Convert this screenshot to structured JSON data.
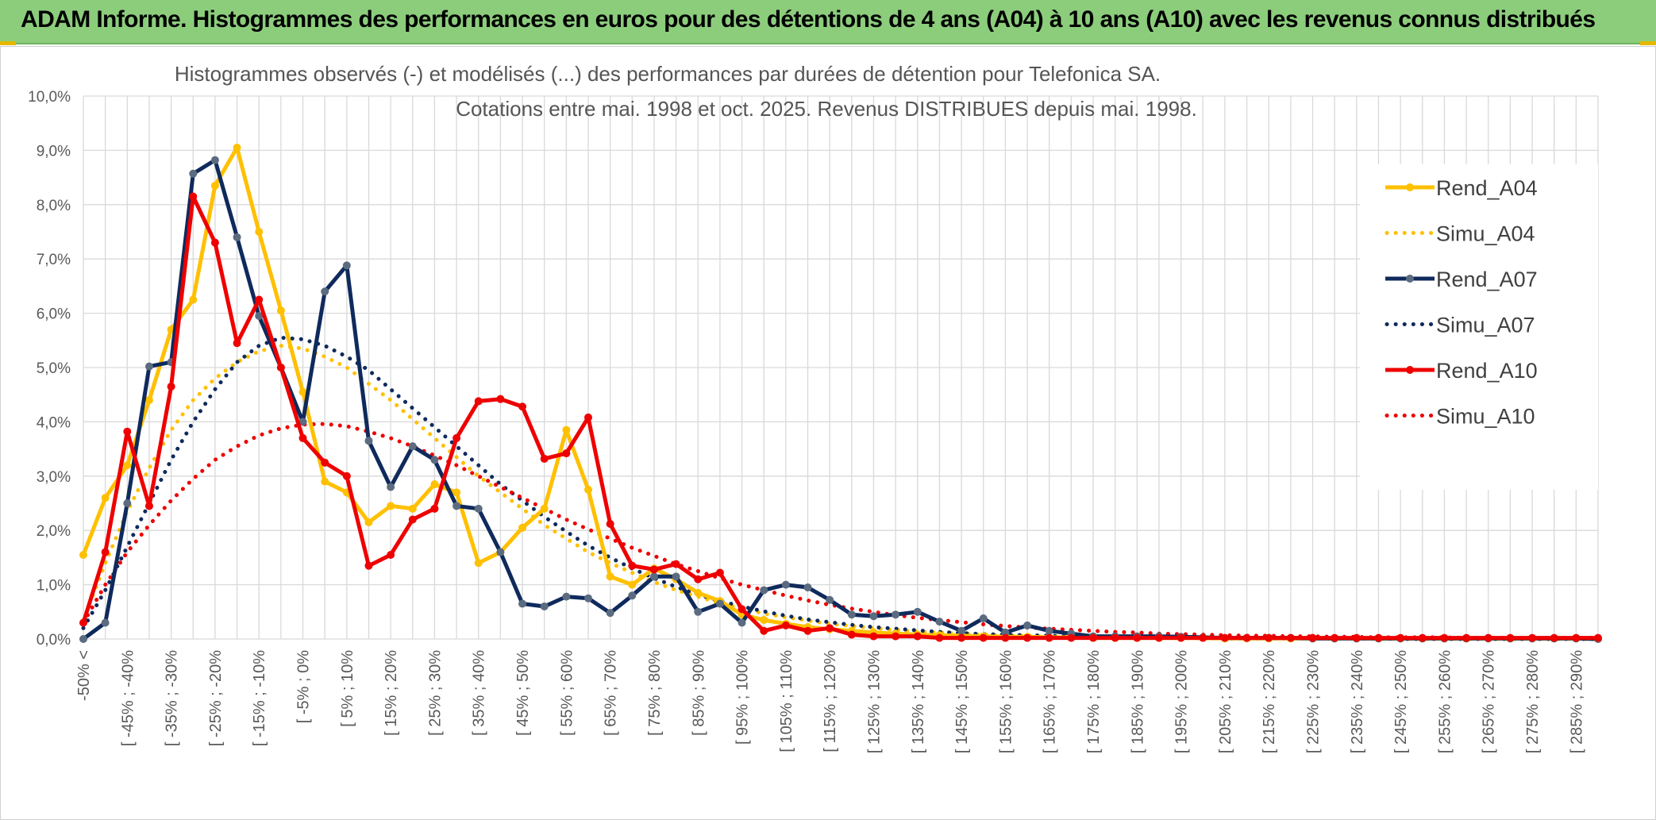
{
  "header": {
    "title": "ADAM Informe. Histogrammes des performances en euros pour des détentions de 4 ans (A04) à 10 ans (A10) avec les revenus connus distribués"
  },
  "colors": {
    "banner": "#8ccd7c",
    "a04": "#ffc000",
    "a07": "#0f2a5c",
    "a07_marker": "#5b6b80",
    "a10": "#ee0000",
    "grid": "#d9d9d9"
  },
  "chart_data": {
    "type": "line",
    "title": [
      "Histogrammes observés (-) et modélisés (...) des performances par durées de détention pour Telefonica SA.",
      "Cotations entre mai. 1998 et oct. 2025. Revenus DISTRIBUES depuis mai. 1998."
    ],
    "ylim": [
      0,
      10
    ],
    "yticks": [
      "0,0%",
      "1,0%",
      "2,0%",
      "3,0%",
      "4,0%",
      "5,0%",
      "6,0%",
      "7,0%",
      "8,0%",
      "9,0%",
      "10,0%"
    ],
    "xlabel": "",
    "ylabel": "",
    "x_tick_labels": [
      "-50% <",
      "[ -45% ; -40%",
      "[ -35% ; -30%",
      "[ -25% ; -20%",
      "[ -15% ; -10%",
      "[ -5% ; 0%",
      "[ 5% ; 10%",
      "[ 15% ; 20%",
      "[ 25% ; 30%",
      "[ 35% ; 40%",
      "[ 45% ; 50%",
      "[ 55% ; 60%",
      "[ 65% ; 70%",
      "[ 75% ; 80%",
      "[ 85% ; 90%",
      "[ 95% ; 100%",
      "[ 105% ; 110%",
      "[ 115% ; 120%",
      "[ 125% ; 130%",
      "[ 135% ; 140%",
      "[ 145% ; 150%",
      "[ 155% ; 160%",
      "[ 165% ; 170%",
      "[ 175% ; 180%",
      "[ 185% ; 190%",
      "[ 195% ; 200%",
      "[ 205% ; 210%",
      "[ 215% ; 220%",
      "[ 225% ; 230%",
      "[ 235% ; 240%",
      "[ 245% ; 250%",
      "[ 255% ; 260%",
      "[ 265% ; 270%",
      "[ 275% ; 280%",
      "[ 285% ; 290%"
    ],
    "legend_position": "right",
    "series": [
      {
        "name": "Rend_A04",
        "style": "solid",
        "color": "#ffc000",
        "values": [
          1.55,
          2.6,
          3.2,
          4.4,
          5.7,
          6.25,
          8.35,
          9.05,
          7.5,
          6.05,
          4.55,
          2.9,
          2.7,
          2.15,
          2.45,
          2.4,
          2.85,
          2.7,
          1.4,
          1.6,
          2.05,
          2.4,
          3.85,
          2.75,
          1.15,
          1.0,
          1.3,
          1.1,
          0.85,
          0.7,
          0.45,
          0.35,
          0.28,
          0.22,
          0.18,
          0.15,
          0.12,
          0.1,
          0.08,
          0.07,
          0.06,
          0.05,
          0.04,
          0.04,
          0.03,
          0.03,
          0.02,
          0.02,
          0.02,
          0.02,
          0.02,
          0.02,
          0.01,
          0.01,
          0.01,
          0.01,
          0.01,
          0.01,
          0.01,
          0.01,
          0.01,
          0.01,
          0.01,
          0.01,
          0.01,
          0.01,
          0.01,
          0.01,
          0.01,
          0.0
        ]
      },
      {
        "name": "Simu_A04",
        "style": "dotted",
        "color": "#ffc000",
        "values": [
          0.35,
          1.4,
          2.35,
          3.15,
          3.85,
          4.4,
          4.8,
          5.1,
          5.3,
          5.4,
          5.35,
          5.2,
          5.0,
          4.7,
          4.4,
          4.05,
          3.7,
          3.35,
          3.0,
          2.7,
          2.4,
          2.1,
          1.85,
          1.6,
          1.4,
          1.22,
          1.05,
          0.9,
          0.78,
          0.66,
          0.56,
          0.47,
          0.4,
          0.34,
          0.28,
          0.24,
          0.2,
          0.17,
          0.14,
          0.12,
          0.1,
          0.08,
          0.07,
          0.06,
          0.05,
          0.04,
          0.03,
          0.03,
          0.02,
          0.02,
          0.02,
          0.01,
          0.01,
          0.01,
          0.01,
          0.01,
          0.01,
          0.01,
          0.01,
          0.0,
          0.0,
          0.0,
          0.0,
          0.0,
          0.0,
          0.0,
          0.0,
          0.0,
          0.0,
          0.0
        ]
      },
      {
        "name": "Rend_A07",
        "style": "solid",
        "color": "#0f2a5c",
        "values": [
          0.0,
          0.3,
          2.5,
          5.02,
          5.1,
          8.57,
          8.82,
          7.4,
          5.95,
          5.0,
          4.0,
          6.4,
          6.88,
          3.65,
          2.8,
          3.55,
          3.3,
          2.45,
          2.4,
          1.6,
          0.65,
          0.6,
          0.78,
          0.75,
          0.48,
          0.8,
          1.15,
          1.15,
          0.5,
          0.65,
          0.3,
          0.9,
          1.0,
          0.95,
          0.72,
          0.45,
          0.42,
          0.45,
          0.5,
          0.32,
          0.15,
          0.38,
          0.12,
          0.25,
          0.15,
          0.1,
          0.05,
          0.05,
          0.05,
          0.05,
          0.04,
          0.03,
          0.02,
          0.02,
          0.02,
          0.02,
          0.01,
          0.01,
          0.01,
          0.01,
          0.01,
          0.01,
          0.01,
          0.01,
          0.01,
          0.01,
          0.01,
          0.01,
          0.01,
          0.0
        ]
      },
      {
        "name": "Simu_A07",
        "style": "dotted",
        "color": "#0f2a5c",
        "values": [
          0.2,
          0.9,
          1.7,
          2.5,
          3.3,
          4.0,
          4.6,
          5.1,
          5.4,
          5.55,
          5.52,
          5.4,
          5.2,
          4.95,
          4.6,
          4.25,
          3.9,
          3.55,
          3.2,
          2.85,
          2.55,
          2.25,
          1.98,
          1.72,
          1.5,
          1.3,
          1.12,
          0.96,
          0.82,
          0.7,
          0.6,
          0.51,
          0.43,
          0.36,
          0.31,
          0.26,
          0.22,
          0.19,
          0.16,
          0.13,
          0.11,
          0.09,
          0.08,
          0.07,
          0.06,
          0.05,
          0.04,
          0.03,
          0.03,
          0.02,
          0.02,
          0.02,
          0.01,
          0.01,
          0.01,
          0.01,
          0.01,
          0.01,
          0.01,
          0.01,
          0.0,
          0.0,
          0.0,
          0.0,
          0.0,
          0.0,
          0.0,
          0.0,
          0.0,
          0.0
        ]
      },
      {
        "name": "Rend_A10",
        "style": "solid",
        "color": "#ee0000",
        "values": [
          0.3,
          1.6,
          3.82,
          2.45,
          4.65,
          8.15,
          7.3,
          5.45,
          6.25,
          5.0,
          3.7,
          3.25,
          3.0,
          1.35,
          1.55,
          2.2,
          2.4,
          3.7,
          4.38,
          4.42,
          4.28,
          3.32,
          3.42,
          4.08,
          2.12,
          1.35,
          1.28,
          1.38,
          1.1,
          1.22,
          0.55,
          0.15,
          0.25,
          0.15,
          0.2,
          0.08,
          0.05,
          0.05,
          0.05,
          0.02,
          0.02,
          0.02,
          0.02,
          0.02,
          0.02,
          0.02,
          0.02,
          0.02,
          0.02,
          0.02,
          0.02,
          0.02,
          0.02,
          0.02,
          0.02,
          0.02,
          0.02,
          0.02,
          0.02,
          0.02,
          0.02,
          0.02,
          0.02,
          0.02,
          0.02,
          0.02,
          0.02,
          0.02,
          0.02,
          0.02
        ]
      },
      {
        "name": "Simu_A10",
        "style": "dotted",
        "color": "#ee0000",
        "values": [
          0.3,
          1.0,
          1.6,
          2.1,
          2.55,
          2.95,
          3.3,
          3.55,
          3.75,
          3.88,
          3.95,
          3.96,
          3.92,
          3.82,
          3.7,
          3.55,
          3.38,
          3.2,
          3.0,
          2.8,
          2.6,
          2.4,
          2.2,
          2.02,
          1.85,
          1.68,
          1.53,
          1.38,
          1.25,
          1.12,
          1.0,
          0.9,
          0.8,
          0.71,
          0.63,
          0.56,
          0.5,
          0.44,
          0.39,
          0.35,
          0.31,
          0.27,
          0.24,
          0.21,
          0.19,
          0.17,
          0.15,
          0.13,
          0.12,
          0.1,
          0.09,
          0.08,
          0.07,
          0.06,
          0.06,
          0.05,
          0.05,
          0.04,
          0.04,
          0.03,
          0.03,
          0.03,
          0.03,
          0.02,
          0.02,
          0.02,
          0.02,
          0.02,
          0.02,
          0.02
        ]
      }
    ]
  }
}
